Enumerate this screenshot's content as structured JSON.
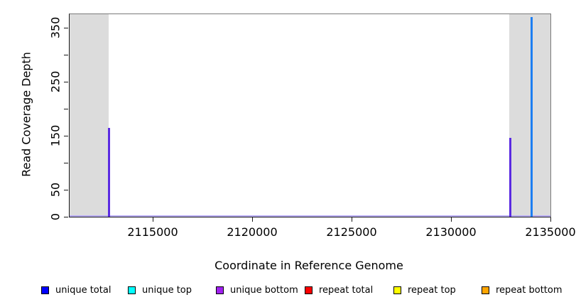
{
  "chart_data": {
    "type": "line",
    "title": "",
    "xlabel": "Coordinate in Reference Genome",
    "ylabel": "Read Coverage Depth",
    "xlim": [
      2110800,
      2135000
    ],
    "ylim": [
      0,
      375
    ],
    "grid": false,
    "legend_position": "bottom",
    "x_ticks": [
      {
        "value": 2115000,
        "label": "2115000"
      },
      {
        "value": 2120000,
        "label": "2120000"
      },
      {
        "value": 2125000,
        "label": "2125000"
      },
      {
        "value": 2130000,
        "label": "2130000"
      },
      {
        "value": 2135000,
        "label": "2135000"
      }
    ],
    "y_ticks": [
      {
        "value": 0,
        "label": "0"
      },
      {
        "value": 50,
        "label": "50"
      },
      {
        "value": 100,
        "label": ""
      },
      {
        "value": 150,
        "label": "150"
      },
      {
        "value": 200,
        "label": ""
      },
      {
        "value": 250,
        "label": "250"
      },
      {
        "value": 300,
        "label": ""
      },
      {
        "value": 350,
        "label": "350"
      }
    ],
    "shaded_regions": [
      {
        "start": 2110800,
        "end": 2112770,
        "color": "#dcdcdc"
      },
      {
        "start": 2132910,
        "end": 2135000,
        "color": "#dcdcdc"
      }
    ],
    "baseline": {
      "value": 0,
      "color": "#b7aaf3"
    },
    "spikes": [
      {
        "x": 2112770,
        "y": 165,
        "series": "unique bottom",
        "color": "#5b2be2"
      },
      {
        "x": 2132970,
        "y": 146,
        "series": "unique bottom",
        "color": "#5b2be2"
      },
      {
        "x": 2134060,
        "y": 370,
        "series": "unique total",
        "color": "#1e7ff2"
      }
    ],
    "legend": [
      {
        "label": "unique total",
        "fill": "#0000ff",
        "border": "#000000"
      },
      {
        "label": "unique top",
        "fill": "#00ffff",
        "border": "#000000"
      },
      {
        "label": "unique bottom",
        "fill": "#a020f0",
        "border": "#000000"
      },
      {
        "label": "repeat total",
        "fill": "#ff0000",
        "border": "#000000"
      },
      {
        "label": "repeat top",
        "fill": "#ffff00",
        "border": "#000000"
      },
      {
        "label": "repeat bottom",
        "fill": "#ffa500",
        "border": "#000000"
      }
    ]
  }
}
